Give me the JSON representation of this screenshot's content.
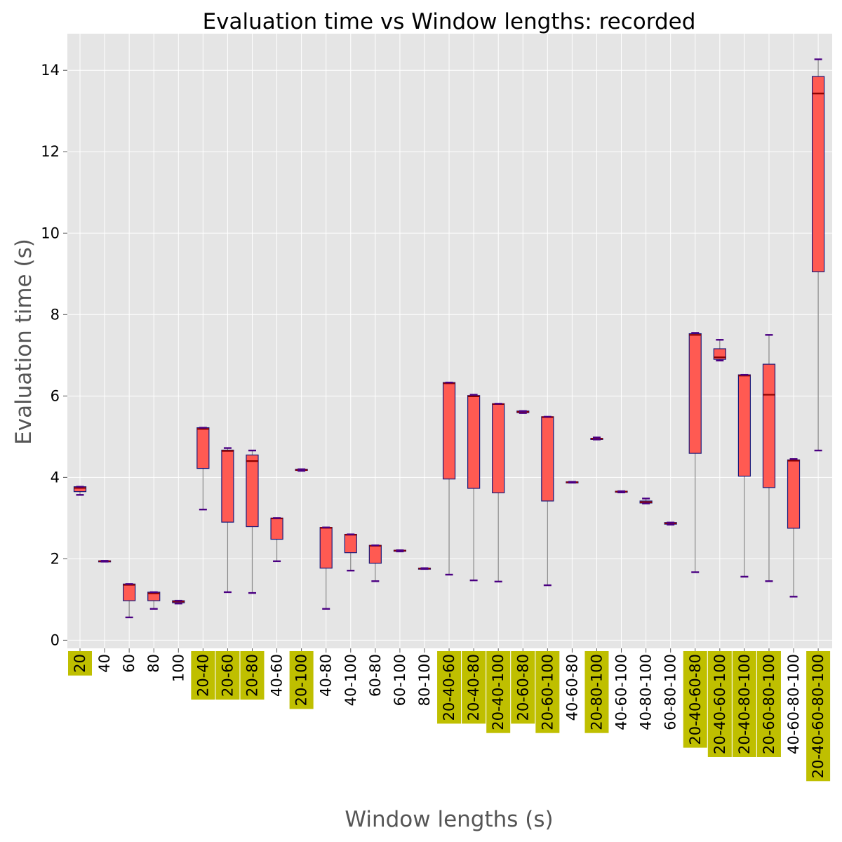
{
  "chart_data": {
    "type": "boxplot",
    "title": "Evaluation time vs Window lengths: recorded",
    "xlabel": "Window lengths (s)",
    "ylabel": "Evaluation time (s)",
    "ylim": [
      -0.2,
      14.9
    ],
    "yticks": [
      0,
      2,
      4,
      6,
      8,
      10,
      12,
      14
    ],
    "grid": true,
    "colors": {
      "background": "#e5e5e5",
      "grid": "#ffffff",
      "box_fill": "#ff5a52",
      "box_edge": "#1a1a7a",
      "median": "#8b0000",
      "whisker": "#888888",
      "cap": "#4b0082",
      "highlight": "#bfbf00"
    },
    "categories": [
      {
        "label": "20",
        "highlight": true,
        "whislo": 3.57,
        "q1": 3.65,
        "median": 3.74,
        "q3": 3.77,
        "whishi": 3.77
      },
      {
        "label": "40",
        "highlight": false,
        "whislo": 1.93,
        "q1": 1.93,
        "median": 1.94,
        "q3": 1.95,
        "whishi": 1.95
      },
      {
        "label": "60",
        "highlight": false,
        "whislo": 0.56,
        "q1": 0.97,
        "median": 1.36,
        "q3": 1.38,
        "whishi": 1.38
      },
      {
        "label": "80",
        "highlight": false,
        "whislo": 0.77,
        "q1": 0.97,
        "median": 1.15,
        "q3": 1.18,
        "whishi": 1.18
      },
      {
        "label": "100",
        "highlight": false,
        "whislo": 0.9,
        "q1": 0.92,
        "median": 0.95,
        "q3": 0.97,
        "whishi": 0.97
      },
      {
        "label": "20-40",
        "highlight": true,
        "whislo": 3.21,
        "q1": 4.22,
        "median": 5.19,
        "q3": 5.22,
        "whishi": 5.22
      },
      {
        "label": "20-60",
        "highlight": true,
        "whislo": 1.18,
        "q1": 2.9,
        "median": 4.65,
        "q3": 4.67,
        "whishi": 4.72
      },
      {
        "label": "20-80",
        "highlight": true,
        "whislo": 1.16,
        "q1": 2.79,
        "median": 4.4,
        "q3": 4.55,
        "whishi": 4.66
      },
      {
        "label": "40-60",
        "highlight": false,
        "whislo": 1.94,
        "q1": 2.48,
        "median": 2.99,
        "q3": 3.0,
        "whishi": 3.0
      },
      {
        "label": "20-100",
        "highlight": true,
        "whislo": 4.16,
        "q1": 4.17,
        "median": 4.18,
        "q3": 4.2,
        "whishi": 4.2
      },
      {
        "label": "40-80",
        "highlight": false,
        "whislo": 0.77,
        "q1": 1.77,
        "median": 2.76,
        "q3": 2.77,
        "whishi": 2.77
      },
      {
        "label": "40-100",
        "highlight": false,
        "whislo": 1.71,
        "q1": 2.15,
        "median": 2.59,
        "q3": 2.6,
        "whishi": 2.6
      },
      {
        "label": "60-80",
        "highlight": false,
        "whislo": 1.45,
        "q1": 1.89,
        "median": 2.32,
        "q3": 2.33,
        "whishi": 2.33
      },
      {
        "label": "60-100",
        "highlight": false,
        "whislo": 2.18,
        "q1": 2.19,
        "median": 2.2,
        "q3": 2.21,
        "whishi": 2.21
      },
      {
        "label": "80-100",
        "highlight": false,
        "whislo": 1.75,
        "q1": 1.75,
        "median": 1.76,
        "q3": 1.77,
        "whishi": 1.77
      },
      {
        "label": "20-40-60",
        "highlight": true,
        "whislo": 1.61,
        "q1": 3.96,
        "median": 6.31,
        "q3": 6.33,
        "whishi": 6.33
      },
      {
        "label": "20-40-80",
        "highlight": true,
        "whislo": 1.47,
        "q1": 3.73,
        "median": 5.99,
        "q3": 6.01,
        "whishi": 6.03
      },
      {
        "label": "20-40-100",
        "highlight": true,
        "whislo": 1.44,
        "q1": 3.62,
        "median": 5.8,
        "q3": 5.81,
        "whishi": 5.81
      },
      {
        "label": "20-60-80",
        "highlight": true,
        "whislo": 5.58,
        "q1": 5.59,
        "median": 5.61,
        "q3": 5.63,
        "whishi": 5.63
      },
      {
        "label": "20-60-100",
        "highlight": true,
        "whislo": 1.35,
        "q1": 3.42,
        "median": 5.48,
        "q3": 5.49,
        "whishi": 5.49
      },
      {
        "label": "40-60-80",
        "highlight": false,
        "whislo": 3.87,
        "q1": 3.87,
        "median": 3.88,
        "q3": 3.89,
        "whishi": 3.89
      },
      {
        "label": "20-80-100",
        "highlight": true,
        "whislo": 4.93,
        "q1": 4.93,
        "median": 4.95,
        "q3": 4.96,
        "whishi": 4.98
      },
      {
        "label": "40-60-100",
        "highlight": false,
        "whislo": 3.63,
        "q1": 3.64,
        "median": 3.65,
        "q3": 3.66,
        "whishi": 3.66
      },
      {
        "label": "40-80-100",
        "highlight": false,
        "whislo": 3.36,
        "q1": 3.37,
        "median": 3.39,
        "q3": 3.42,
        "whishi": 3.48
      },
      {
        "label": "60-80-100",
        "highlight": false,
        "whislo": 2.84,
        "q1": 2.85,
        "median": 2.87,
        "q3": 2.89,
        "whishi": 2.89
      },
      {
        "label": "20-40-60-80",
        "highlight": true,
        "whislo": 1.67,
        "q1": 4.59,
        "median": 7.5,
        "q3": 7.53,
        "whishi": 7.55
      },
      {
        "label": "20-40-60-100",
        "highlight": true,
        "whislo": 6.87,
        "q1": 6.9,
        "median": 6.95,
        "q3": 7.16,
        "whishi": 7.38
      },
      {
        "label": "20-40-80-100",
        "highlight": true,
        "whislo": 1.56,
        "q1": 4.03,
        "median": 6.5,
        "q3": 6.52,
        "whishi": 6.52
      },
      {
        "label": "20-60-80-100",
        "highlight": true,
        "whislo": 1.45,
        "q1": 3.75,
        "median": 6.03,
        "q3": 6.78,
        "whishi": 7.5
      },
      {
        "label": "40-60-80-100",
        "highlight": false,
        "whislo": 1.07,
        "q1": 2.75,
        "median": 4.41,
        "q3": 4.43,
        "whishi": 4.45
      },
      {
        "label": "20-40-60-80-100",
        "highlight": true,
        "whislo": 4.66,
        "q1": 9.05,
        "median": 13.43,
        "q3": 13.85,
        "whishi": 14.27
      }
    ]
  }
}
